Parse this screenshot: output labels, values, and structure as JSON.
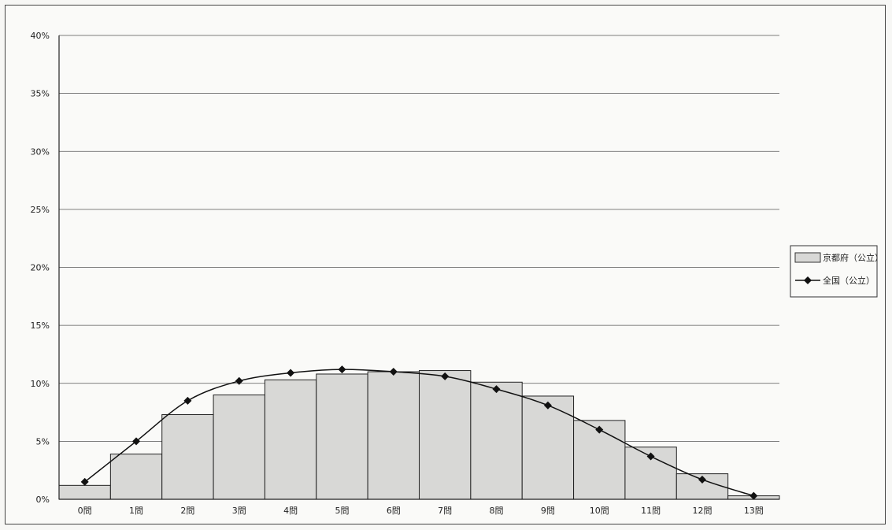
{
  "chart_data": {
    "type": "bar",
    "categories": [
      "0問",
      "1問",
      "2問",
      "3問",
      "4問",
      "5問",
      "6問",
      "7問",
      "8問",
      "9問",
      "10問",
      "11問",
      "12問",
      "13問"
    ],
    "ylim": [
      0,
      40
    ],
    "yticks": [
      "0%",
      "5%",
      "10%",
      "15%",
      "20%",
      "25%",
      "30%",
      "35%",
      "40%"
    ],
    "grid": true,
    "legend_position": "right",
    "series": [
      {
        "name": "京都府（公立）",
        "type": "bar",
        "color": "#d8d8d6",
        "values": [
          1.2,
          3.9,
          7.3,
          9.0,
          10.3,
          10.8,
          11.0,
          11.1,
          10.1,
          8.9,
          6.8,
          4.5,
          2.2,
          0.3
        ]
      },
      {
        "name": "全国（公立）",
        "type": "line",
        "marker": "diamond",
        "color": "#111111",
        "values": [
          1.5,
          5.0,
          8.5,
          10.2,
          10.9,
          11.2,
          11.0,
          10.6,
          9.5,
          8.1,
          6.0,
          3.7,
          1.7,
          0.3
        ]
      }
    ]
  }
}
